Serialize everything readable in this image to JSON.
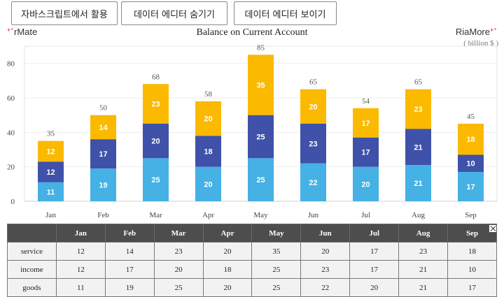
{
  "toolbar": {
    "button1_label": "자바스크립트에서 활용",
    "button2_label": "데이터 에디터 숨기기",
    "button3_label": "데이터 에디터 보이기"
  },
  "brand": {
    "left": "rMate",
    "right": "RiaMore"
  },
  "colors": {
    "goods": "#45b1e4",
    "income": "#3f51a8",
    "service": "#fbb900",
    "header": "#4d4d4d"
  },
  "chart_data": {
    "type": "bar",
    "stacked": true,
    "title": "Balance on Current Account",
    "unit": "( billion $ )",
    "categories": [
      "Jan",
      "Feb",
      "Mar",
      "Apr",
      "May",
      "Jun",
      "Jul",
      "Aug",
      "Sep"
    ],
    "series": [
      {
        "name": "goods",
        "values": [
          11,
          19,
          25,
          20,
          25,
          22,
          20,
          21,
          17
        ]
      },
      {
        "name": "income",
        "values": [
          12,
          17,
          20,
          18,
          25,
          23,
          17,
          21,
          10
        ]
      },
      {
        "name": "service",
        "values": [
          12,
          14,
          23,
          20,
          35,
          20,
          17,
          23,
          18
        ]
      }
    ],
    "totals": [
      35,
      50,
      68,
      58,
      85,
      65,
      54,
      65,
      45
    ],
    "ylim": [
      0,
      90
    ],
    "yticks": [
      0,
      20,
      40,
      60,
      80
    ],
    "grid": true
  },
  "table": {
    "corner": "",
    "row_order": [
      "service",
      "income",
      "goods"
    ]
  }
}
